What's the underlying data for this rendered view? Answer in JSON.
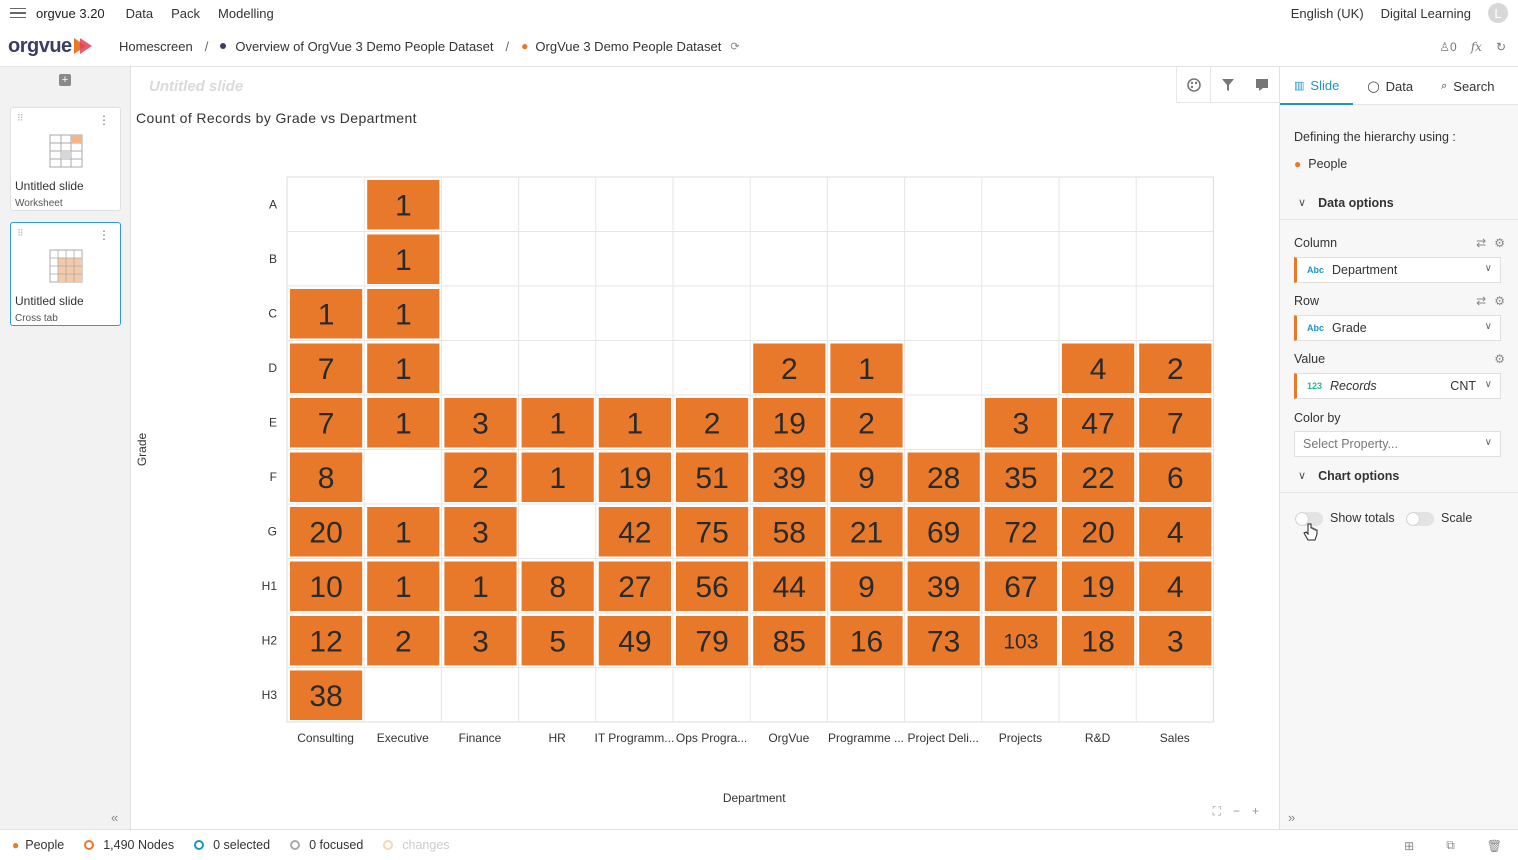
{
  "menubar": {
    "app_name": "orgvue 3.20",
    "menus": [
      "Data",
      "Pack",
      "Modelling"
    ],
    "language": "English (UK)",
    "digital_learning": "Digital Learning",
    "avatar_initial": "L"
  },
  "breadcrumb": {
    "logo": "orgvue",
    "home": "Homescreen",
    "overview": "Overview of OrgVue 3 Demo People Dataset",
    "dataset": "OrgVue 3 Demo People Dataset",
    "user_count": "0",
    "fx": "fx"
  },
  "slides": [
    {
      "title": "Untitled slide",
      "type": "Worksheet"
    },
    {
      "title": "Untitled slide",
      "type": "Cross tab"
    }
  ],
  "canvas": {
    "slide_title": "Untitled slide",
    "chart_title": "Count of Records by Grade vs Department"
  },
  "chart_data": {
    "type": "heatmap",
    "title": "Count of Records by Grade vs Department",
    "xlabel": "Department",
    "ylabel": "Grade",
    "columns": [
      "Consulting",
      "Executive",
      "Finance",
      "HR",
      "IT Programm...",
      "Ops Progra...",
      "OrgVue",
      "Programme ...",
      "Project Deli...",
      "Projects",
      "R&D",
      "Sales"
    ],
    "rows": [
      "A",
      "B",
      "C",
      "D",
      "E",
      "F",
      "G",
      "H1",
      "H2",
      "H3"
    ],
    "values": [
      [
        null,
        1,
        null,
        null,
        null,
        null,
        null,
        null,
        null,
        null,
        null,
        null
      ],
      [
        null,
        1,
        null,
        null,
        null,
        null,
        null,
        null,
        null,
        null,
        null,
        null
      ],
      [
        1,
        1,
        null,
        null,
        null,
        null,
        null,
        null,
        null,
        null,
        null,
        null
      ],
      [
        7,
        1,
        null,
        null,
        null,
        null,
        2,
        1,
        null,
        null,
        4,
        2
      ],
      [
        7,
        1,
        3,
        1,
        1,
        2,
        19,
        2,
        null,
        3,
        47,
        7
      ],
      [
        8,
        null,
        2,
        1,
        19,
        51,
        39,
        9,
        28,
        35,
        22,
        6
      ],
      [
        20,
        1,
        3,
        null,
        42,
        75,
        58,
        21,
        69,
        72,
        20,
        4
      ],
      [
        10,
        1,
        1,
        8,
        27,
        56,
        44,
        9,
        39,
        67,
        19,
        4
      ],
      [
        12,
        2,
        3,
        5,
        49,
        79,
        85,
        16,
        73,
        103,
        18,
        3
      ],
      [
        38,
        null,
        null,
        null,
        null,
        null,
        null,
        null,
        null,
        null,
        null,
        null
      ]
    ],
    "cell_color": "#e8792a",
    "grid": true
  },
  "right_panel": {
    "tabs": [
      "Slide",
      "Data",
      "Search"
    ],
    "hierarchy_label": "Defining the hierarchy using :",
    "hierarchy_value": "People",
    "data_options": "Data options",
    "column_label": "Column",
    "column_value": "Department",
    "row_label": "Row",
    "row_value": "Grade",
    "value_label": "Value",
    "value_value": "Records",
    "value_agg": "CNT",
    "color_label": "Color by",
    "color_placeholder": "Select Property...",
    "chart_options": "Chart options",
    "show_totals": "Show totals",
    "scale": "Scale",
    "abc_tag": "Abc",
    "num_tag": "123"
  },
  "statusbar": {
    "people": "People",
    "nodes": "1,490 Nodes",
    "selected": "0 selected",
    "focused": "0 focused",
    "changes": "changes"
  }
}
